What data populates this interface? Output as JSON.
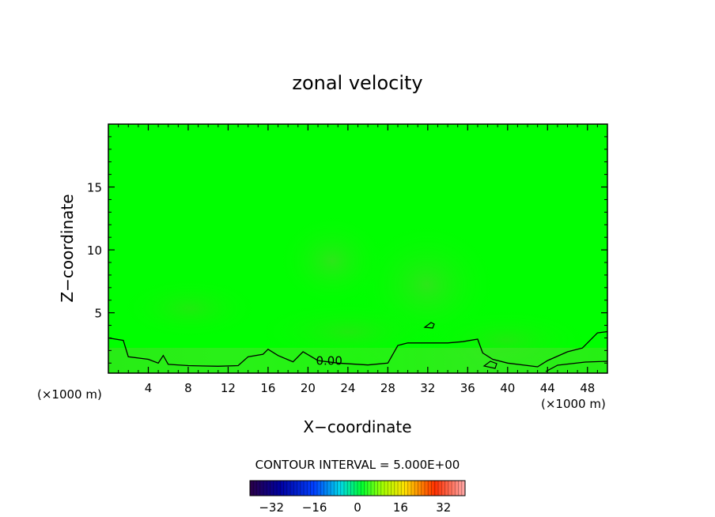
{
  "chart_data": {
    "type": "heatmap",
    "title": "zonal velocity",
    "xlabel": "X−coordinate",
    "ylabel": "Z−coordinate",
    "x_unit_left": "(×1000 m)",
    "x_unit_right": "(×1000 m)",
    "xlim": [
      0,
      50
    ],
    "ylim": [
      0.2,
      20
    ],
    "x_ticks": [
      4,
      8,
      12,
      16,
      20,
      24,
      28,
      32,
      36,
      40,
      44,
      48
    ],
    "x_tick_labels": [
      "4",
      "8",
      "12",
      "16",
      "20",
      "24",
      "28",
      "32",
      "36",
      "40",
      "44",
      "48"
    ],
    "y_ticks": [
      5,
      10,
      15
    ],
    "y_tick_labels": [
      "5",
      "10",
      "15"
    ],
    "contour_label": "0.00",
    "contour_label_position": [
      20.8,
      0.85
    ],
    "contour_interval_text": "CONTOUR INTERVAL = 5.000E+00",
    "colorbar": {
      "range": [
        -40,
        40
      ],
      "ticks": [
        -32,
        -16,
        0,
        16,
        32
      ],
      "tick_labels": [
        "−32",
        "−16",
        "0",
        "16",
        "32"
      ]
    },
    "field_description": "near-zero zonal velocity (bright green) across the domain with a low-level zero contour",
    "zero_contour": [
      [
        0,
        3.0
      ],
      [
        1.5,
        2.8
      ],
      [
        2.0,
        1.5
      ],
      [
        4.0,
        1.3
      ],
      [
        5.0,
        1.0
      ],
      [
        5.5,
        1.6
      ],
      [
        6.0,
        0.9
      ],
      [
        8.0,
        0.8
      ],
      [
        11.0,
        0.75
      ],
      [
        13.0,
        0.8
      ],
      [
        14.0,
        1.5
      ],
      [
        15.5,
        1.7
      ],
      [
        16.0,
        2.1
      ],
      [
        17.0,
        1.6
      ],
      [
        18.5,
        1.1
      ],
      [
        19.5,
        1.9
      ],
      [
        21.0,
        1.2
      ],
      [
        23.0,
        1.0
      ],
      [
        26.0,
        0.85
      ],
      [
        28.0,
        1.0
      ],
      [
        29.0,
        2.4
      ],
      [
        30.0,
        2.6
      ],
      [
        34.0,
        2.6
      ],
      [
        35.5,
        2.7
      ],
      [
        37.0,
        2.9
      ],
      [
        37.5,
        1.8
      ],
      [
        38.5,
        1.3
      ],
      [
        40.0,
        1.0
      ],
      [
        43.0,
        0.7
      ],
      [
        44.0,
        1.2
      ],
      [
        46.0,
        1.9
      ],
      [
        47.5,
        2.2
      ],
      [
        49.0,
        3.4
      ],
      [
        50,
        3.5
      ]
    ]
  }
}
